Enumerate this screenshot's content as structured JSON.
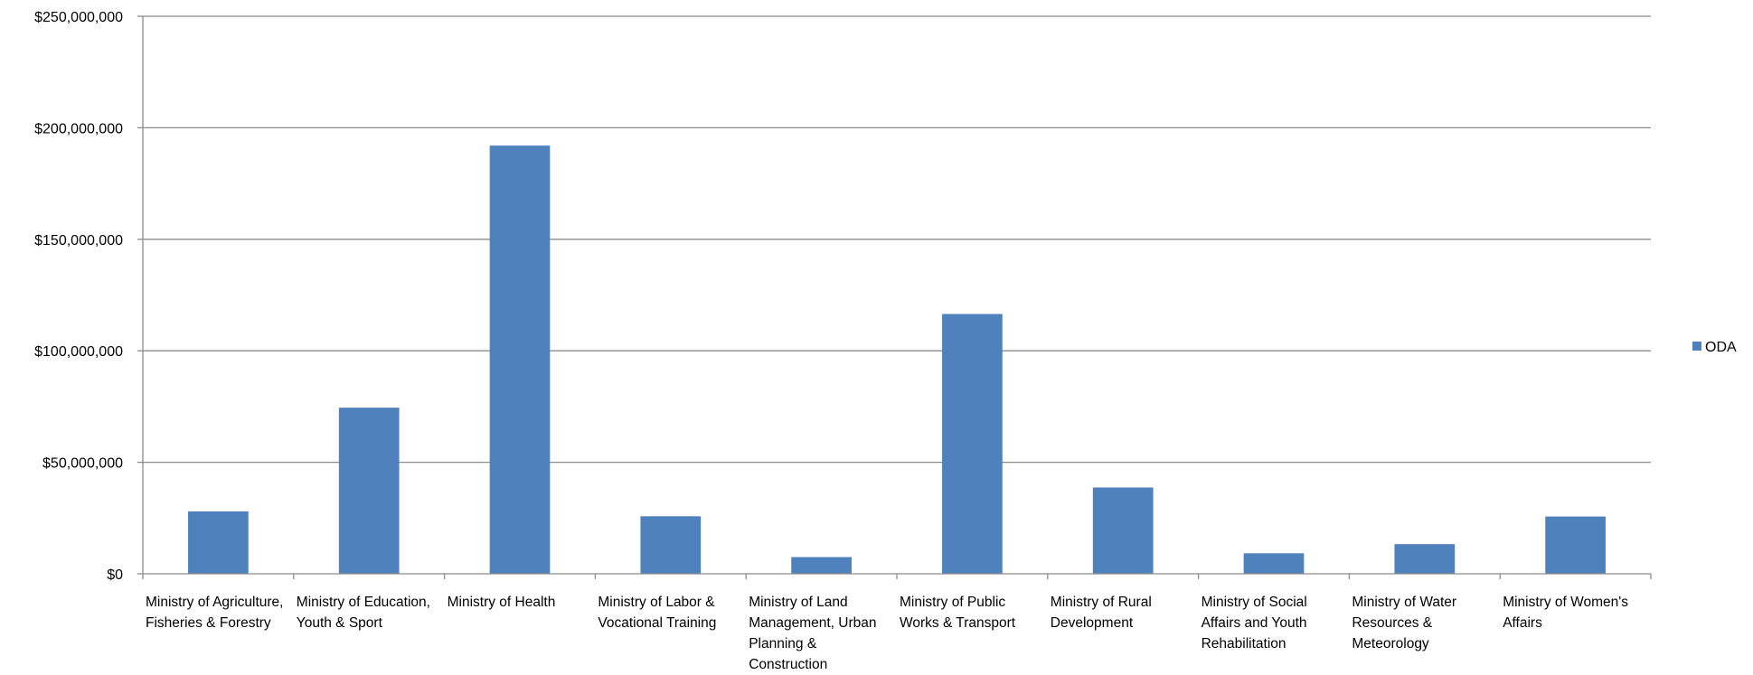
{
  "chart_data": {
    "type": "bar",
    "title": "",
    "xlabel": "",
    "ylabel": "",
    "ylim": [
      0,
      250000000
    ],
    "yticks": [
      0,
      50000000,
      100000000,
      150000000,
      200000000,
      250000000
    ],
    "ytick_labels": [
      "$0",
      "$50,000,000",
      "$100,000,000",
      "$150,000,000",
      "$200,000,000",
      "$250,000,000"
    ],
    "grid": true,
    "legend_position": "right",
    "bar_color": "#4F81BD",
    "categories": [
      "Ministry of Agriculture, Fisheries & Forestry",
      "Ministry of Education, Youth & Sport",
      "Ministry of Health",
      "Ministry of Labor & Vocational Training",
      "Ministry of Land Management, Urban Planning & Construction",
      "Ministry of Public Works & Transport",
      "Ministry of Rural Development",
      "Ministry of Social Affairs and Youth Rehabilitation",
      "Ministry of Water Resources & Meteorology",
      "Ministry of Women's Affairs"
    ],
    "series": [
      {
        "name": "ODA",
        "values": [
          28000000,
          74500000,
          192000000,
          25800000,
          7500000,
          116500000,
          38700000,
          9200000,
          13300000,
          25700000
        ]
      }
    ]
  }
}
